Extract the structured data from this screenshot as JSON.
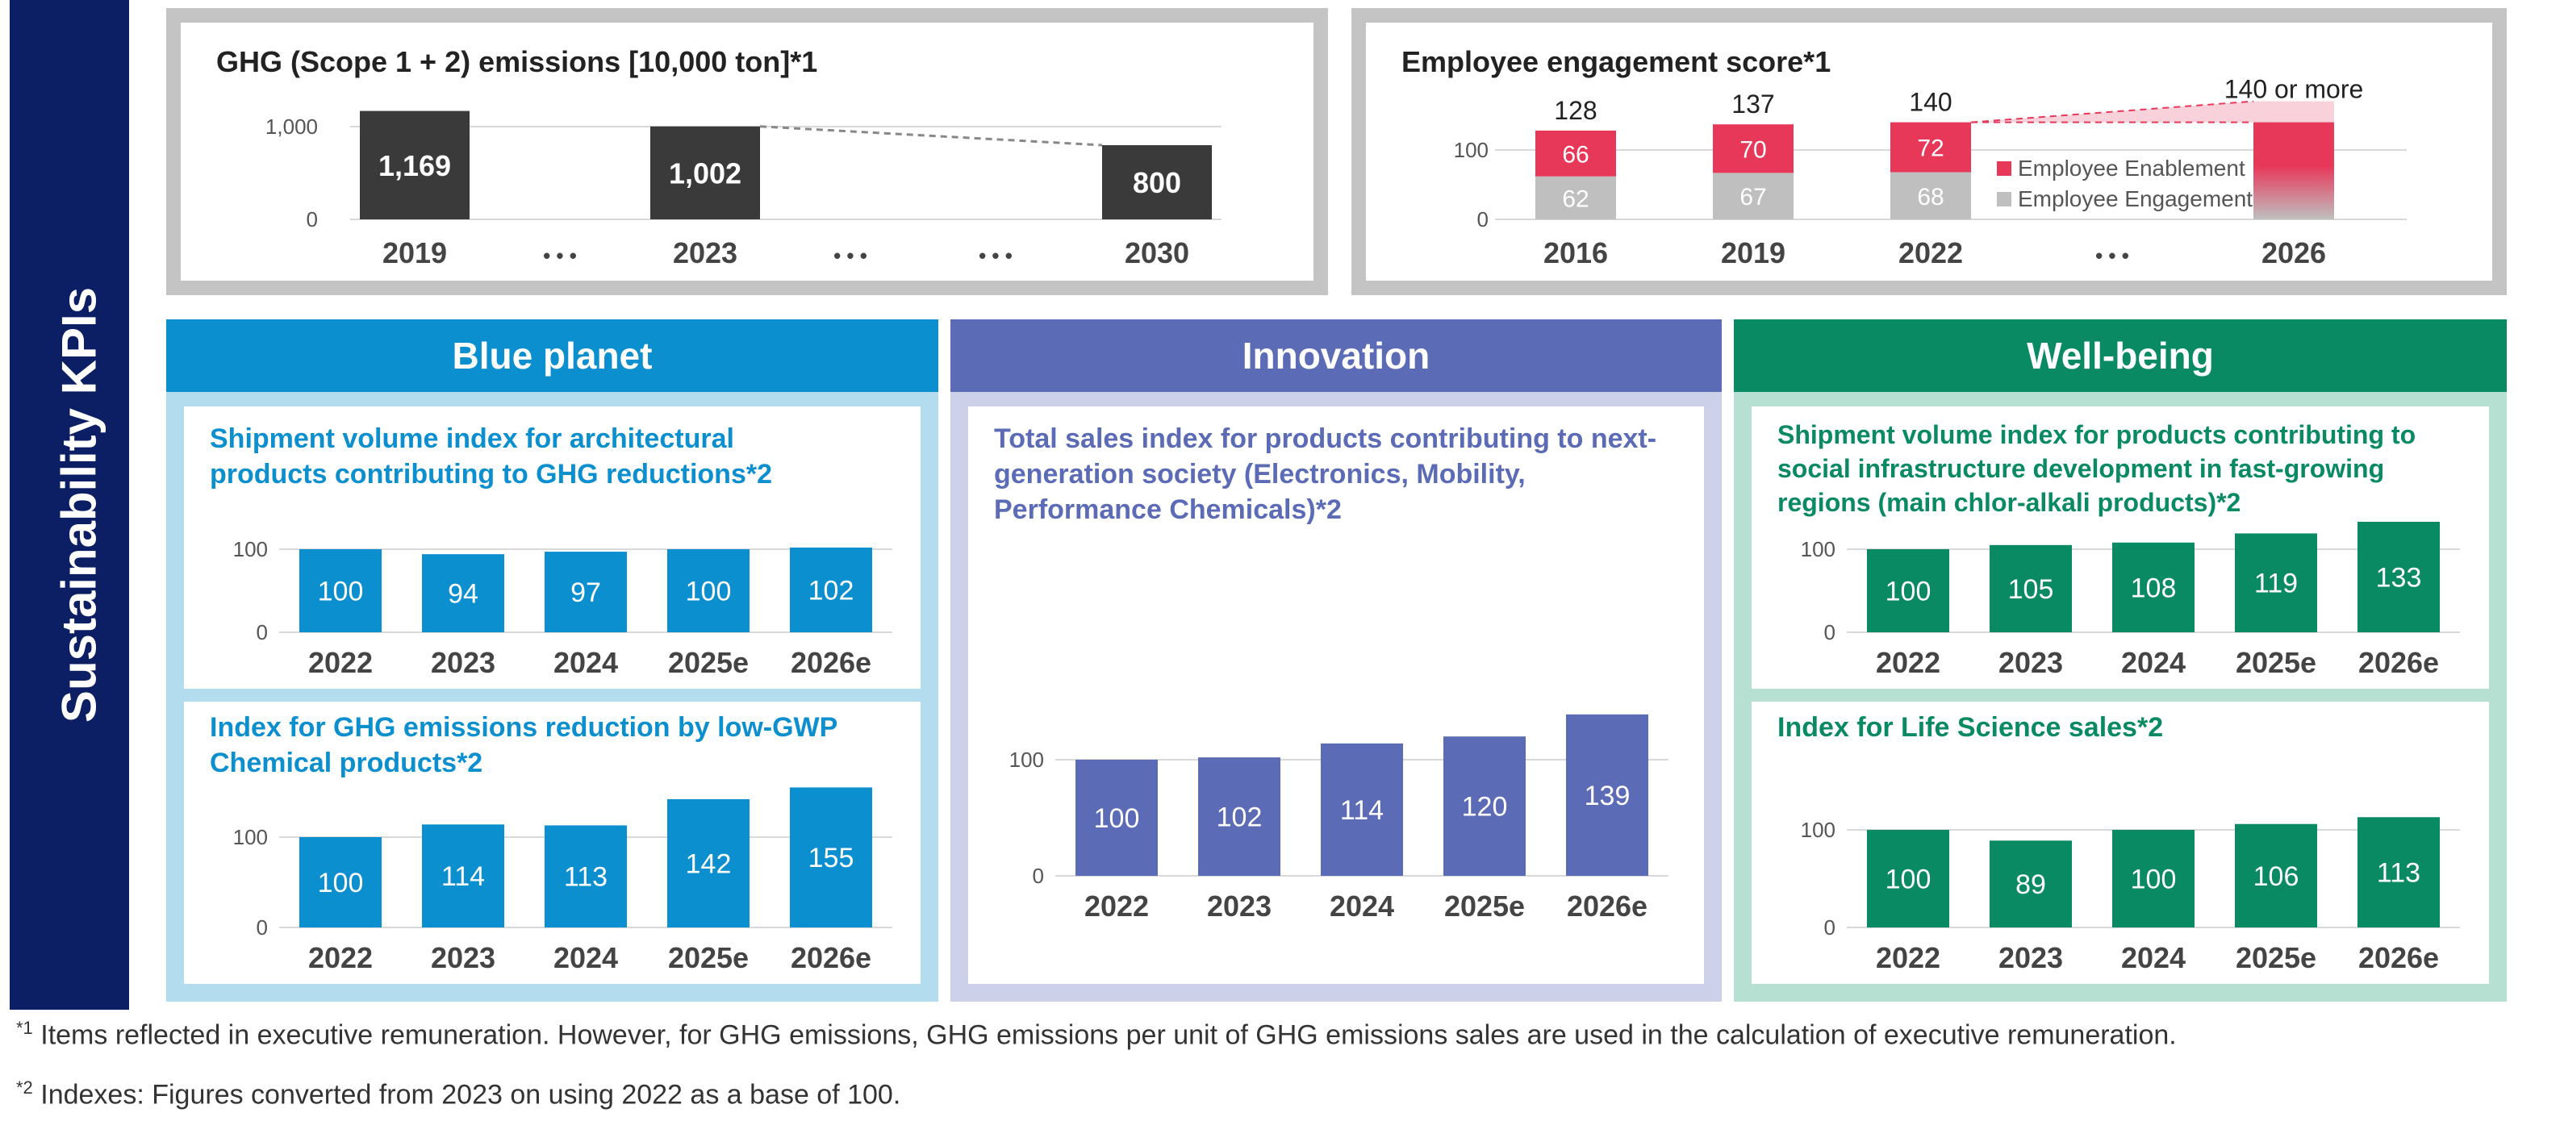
{
  "sidebar_title": "Sustainability KPIs",
  "colors": {
    "blue": "#0b8fcf",
    "innovation": "#5c6bb5",
    "wellbeing": "#0a8a63",
    "dark": "#3a3a3a",
    "enablement": "#e8385a",
    "engagement": "#bfbfbf"
  },
  "panels": {
    "blue": "Blue planet",
    "innovation": "Innovation",
    "wellbeing": "Well-being"
  },
  "footnotes": {
    "f1_mark": "*1",
    "f1": "Items reflected in executive remuneration. However, for GHG emissions, GHG emissions per unit of GHG emissions sales are used in the calculation of executive remuneration.",
    "f2_mark": "*2",
    "f2": "Indexes: Figures converted from 2023 on using 2022 as a base of 100."
  },
  "chart_data": [
    {
      "id": "ghg",
      "type": "bar",
      "title": "GHG (Scope 1 + 2) emissions [10,000 ton]*1",
      "categories": [
        "2019",
        "2023",
        "2030"
      ],
      "values": [
        1169,
        1002,
        800
      ],
      "value_labels": [
        "1,169",
        "1,002",
        "800"
      ],
      "yticks": [
        "1,000",
        "0"
      ],
      "ylim": [
        0,
        1200
      ],
      "separators": [
        "• • •",
        "• • •",
        "• • •"
      ],
      "grid": true
    },
    {
      "id": "engagement",
      "type": "bar",
      "stacked": true,
      "title": "Employee engagement score*1",
      "categories": [
        "2016",
        "2019",
        "2022",
        "2026"
      ],
      "series": [
        {
          "name": "Employee Engagement",
          "values": [
            62,
            67,
            68,
            null
          ]
        },
        {
          "name": "Employee Enablement",
          "values": [
            66,
            70,
            72,
            null
          ]
        }
      ],
      "totals": [
        "128",
        "137",
        "140",
        "140 or more"
      ],
      "yticks": [
        "100",
        "0"
      ],
      "separator": "• • •",
      "legend": "inside-right",
      "grid": true
    },
    {
      "id": "bp1",
      "type": "bar",
      "title": "Shipment volume index for architectural products contributing to GHG reductions*2",
      "categories": [
        "2022",
        "2023",
        "2024",
        "2025e",
        "2026e"
      ],
      "values": [
        100,
        94,
        97,
        100,
        102
      ],
      "yticks": [
        "100",
        "0"
      ],
      "grid": true
    },
    {
      "id": "bp2",
      "type": "bar",
      "title": "Index for GHG emissions reduction by low-GWP Chemical products*2",
      "categories": [
        "2022",
        "2023",
        "2024",
        "2025e",
        "2026e"
      ],
      "values": [
        100,
        114,
        113,
        142,
        155
      ],
      "yticks": [
        "100",
        "0"
      ],
      "grid": true
    },
    {
      "id": "inn",
      "type": "bar",
      "title": "Total sales index for products contributing to next-generation society (Electronics, Mobility, Performance Chemicals)*2",
      "categories": [
        "2022",
        "2023",
        "2024",
        "2025e",
        "2026e"
      ],
      "values": [
        100,
        102,
        114,
        120,
        139
      ],
      "yticks": [
        "100",
        "0"
      ],
      "grid": true
    },
    {
      "id": "wb1",
      "type": "bar",
      "title": "Shipment volume index for products contributing to social infrastructure development in fast-growing regions (main chlor-alkali products)*2",
      "categories": [
        "2022",
        "2023",
        "2024",
        "2025e",
        "2026e"
      ],
      "values": [
        100,
        105,
        108,
        119,
        133
      ],
      "yticks": [
        "100",
        "0"
      ],
      "grid": true
    },
    {
      "id": "wb2",
      "type": "bar",
      "title": "Index for Life Science sales*2",
      "categories": [
        "2022",
        "2023",
        "2024",
        "2025e",
        "2026e"
      ],
      "values": [
        100,
        89,
        100,
        106,
        113
      ],
      "yticks": [
        "100",
        "0"
      ],
      "grid": true
    }
  ]
}
